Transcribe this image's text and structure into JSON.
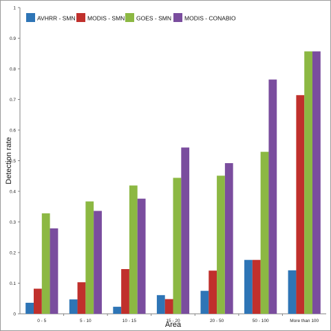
{
  "chart_data": {
    "type": "bar",
    "title": "",
    "xlabel": "Area",
    "ylabel": "Detection rate",
    "categories": [
      "0 - 5",
      "5 - 10",
      "10 - 15",
      "15 - 20",
      "20 - 50",
      "50 - 100",
      "More than 100"
    ],
    "ylim": [
      0,
      1
    ],
    "yticks": [
      "0",
      "0.1",
      "0.2",
      "0.3",
      "0.4",
      "0.5",
      "0.6",
      "0.7",
      "0.8",
      "0.9",
      "1"
    ],
    "grid": false,
    "legend_position": "top",
    "series": [
      {
        "name": "AVHRR - SMN",
        "color": "#2e75b6",
        "values": [
          0.036,
          0.047,
          0.023,
          0.061,
          0.075,
          0.176,
          0.142
        ]
      },
      {
        "name": "MODIS - SMN",
        "color": "#c0302c",
        "values": [
          0.082,
          0.103,
          0.146,
          0.048,
          0.141,
          0.176,
          0.714
        ]
      },
      {
        "name": "GOES - SMN",
        "color": "#8cb843",
        "values": [
          0.328,
          0.367,
          0.419,
          0.444,
          0.451,
          0.529,
          0.857
        ]
      },
      {
        "name": "MODIS - CONABIO",
        "color": "#7a4d9e",
        "values": [
          0.279,
          0.336,
          0.376,
          0.543,
          0.492,
          0.765,
          0.857
        ]
      }
    ]
  }
}
